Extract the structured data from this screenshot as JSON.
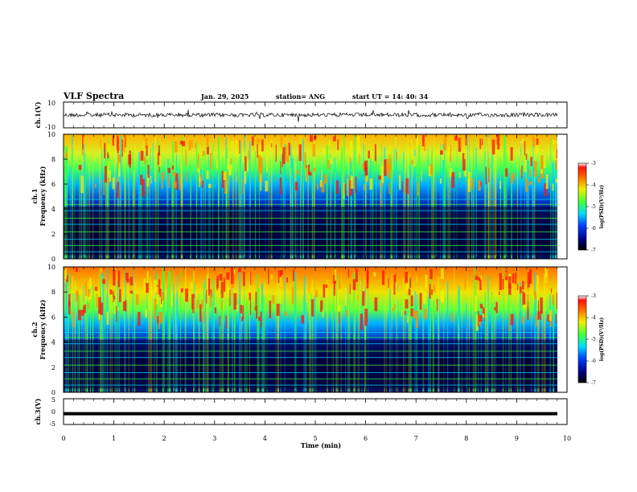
{
  "header": {
    "title": "VLF Spectra",
    "date": "Jan. 29, 2025",
    "station": "station= ANG",
    "start": "start  UT =   14: 40: 34"
  },
  "chart_data": [
    {
      "type": "line",
      "name": "ch1-waveform",
      "ylabel": "ch.1(V)",
      "ylim": [
        -10,
        10
      ],
      "yticks": [
        "10",
        "-10"
      ],
      "xlim": [
        0,
        10
      ]
    },
    {
      "type": "heatmap",
      "name": "ch1-spectrogram",
      "ylabel_top": "ch.1",
      "ylabel": "Frequency (kHz)",
      "ylim": [
        0,
        10
      ],
      "yticks": [
        "0",
        "2",
        "4",
        "6",
        "8",
        "10"
      ],
      "xlim": [
        0,
        10
      ],
      "colorbar": {
        "label": "log(PSD)(V²/Hz)",
        "range": [
          -7,
          -3
        ],
        "ticks": [
          "-3",
          "-4",
          "-5",
          "-6",
          "-7"
        ]
      }
    },
    {
      "type": "heatmap",
      "name": "ch2-spectrogram",
      "ylabel_top": "ch.2",
      "ylabel": "Frequency (kHz)",
      "ylim": [
        0,
        10
      ],
      "yticks": [
        "0",
        "2",
        "4",
        "6",
        "8",
        "10"
      ],
      "xlim": [
        0,
        10
      ],
      "colorbar": {
        "label": "log(PSD)(V²/Hz)",
        "range": [
          -7,
          -3
        ],
        "ticks": [
          "-3",
          "-4",
          "-5",
          "-6",
          "-7"
        ]
      }
    },
    {
      "type": "line",
      "name": "ch3-waveform",
      "ylabel": "ch.3(V)",
      "ylim": [
        -5,
        5
      ],
      "yticks": [
        "5",
        "0",
        "-5"
      ],
      "constant_value": -0.8,
      "xlim": [
        0,
        10
      ],
      "xlabel": "Time (min)",
      "xticks": [
        "0",
        "1",
        "2",
        "3",
        "4",
        "5",
        "6",
        "7",
        "8",
        "9",
        "10"
      ]
    }
  ],
  "colors": {
    "low": "#000060",
    "blue": "#0030ff",
    "cyan": "#00d8ff",
    "green": "#40ff40",
    "yellow": "#f0f000",
    "orange": "#ff9000",
    "red": "#ff1010"
  }
}
